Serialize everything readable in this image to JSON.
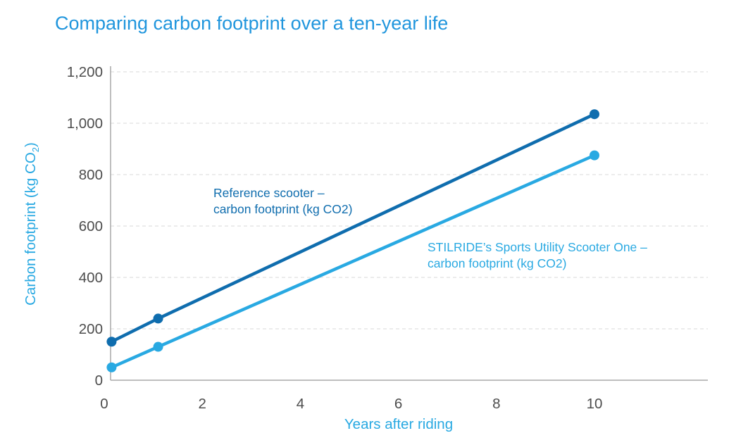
{
  "title": "Comparing carbon footprint over a ten-year life",
  "colors": {
    "title": "#2196dd",
    "light_series": "#29a9e2",
    "dark_series": "#0f6dae",
    "tick_text": "#4d4d4d",
    "gridline": "#d9d9d9",
    "axis_line": "#a8a8a8"
  },
  "chart_data": {
    "type": "line",
    "title": "Comparing carbon footprint over a ten-year life",
    "xlabel": "Years after riding",
    "ylabel": "Carbon footprint (kg CO2)",
    "ylabel_parts": {
      "main": "Carbon footprint (kg CO",
      "sub": "2",
      "end": ")"
    },
    "xlim": [
      0,
      12.3
    ],
    "ylim": [
      0,
      1216
    ],
    "x_ticks": [
      0,
      2,
      4,
      6,
      8,
      10
    ],
    "y_ticks": [
      0,
      200,
      400,
      600,
      800,
      1000,
      1200
    ],
    "y_tick_labels": [
      "0",
      "200",
      "400",
      "600",
      "800",
      "1,000",
      "1,200"
    ],
    "grid": "horizontal-dashed",
    "legend": "inline-annotations",
    "series": [
      {
        "name": "Reference scooter – carbon footprint (kg CO2)",
        "key": "reference",
        "color": "#0f6dae",
        "x": [
          0.15,
          1.1,
          10
        ],
        "y": [
          150,
          240,
          1035
        ]
      },
      {
        "name": "STILRIDE’s Sports Utility Scooter One – carbon footprint (kg CO2)",
        "key": "stilride",
        "color": "#29a9e2",
        "x": [
          0.15,
          1.1,
          10
        ],
        "y": [
          50,
          130,
          875
        ]
      }
    ],
    "annotations": [
      {
        "text": "Reference scooter –\ncarbon footprint (kg CO2)",
        "series": "reference"
      },
      {
        "text": "STILRIDE’s Sports Utility Scooter One –\ncarbon footprint (kg CO2)",
        "series": "stilride"
      }
    ]
  }
}
